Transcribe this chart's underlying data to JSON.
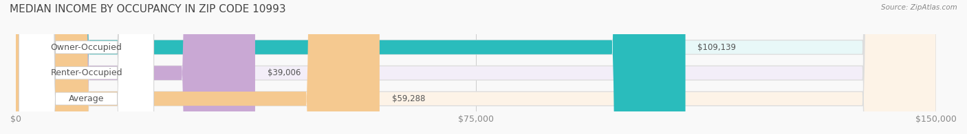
{
  "title": "MEDIAN INCOME BY OCCUPANCY IN ZIP CODE 10993",
  "source": "Source: ZipAtlas.com",
  "categories": [
    "Owner-Occupied",
    "Renter-Occupied",
    "Average"
  ],
  "values": [
    109139,
    39006,
    59288
  ],
  "max_value": 150000,
  "bar_colors": [
    "#2abcbc",
    "#c9a8d4",
    "#f5c990"
  ],
  "bar_bg_colors": [
    "#e8f8f8",
    "#f3eef8",
    "#fdf3e7"
  ],
  "value_labels": [
    "$109,139",
    "$39,006",
    "$59,288"
  ],
  "x_ticks": [
    0,
    75000,
    150000
  ],
  "x_tick_labels": [
    "$0",
    "$75,000",
    "$150,000"
  ],
  "title_fontsize": 11,
  "label_fontsize": 9,
  "tick_fontsize": 9,
  "background_color": "#f9f9f9"
}
